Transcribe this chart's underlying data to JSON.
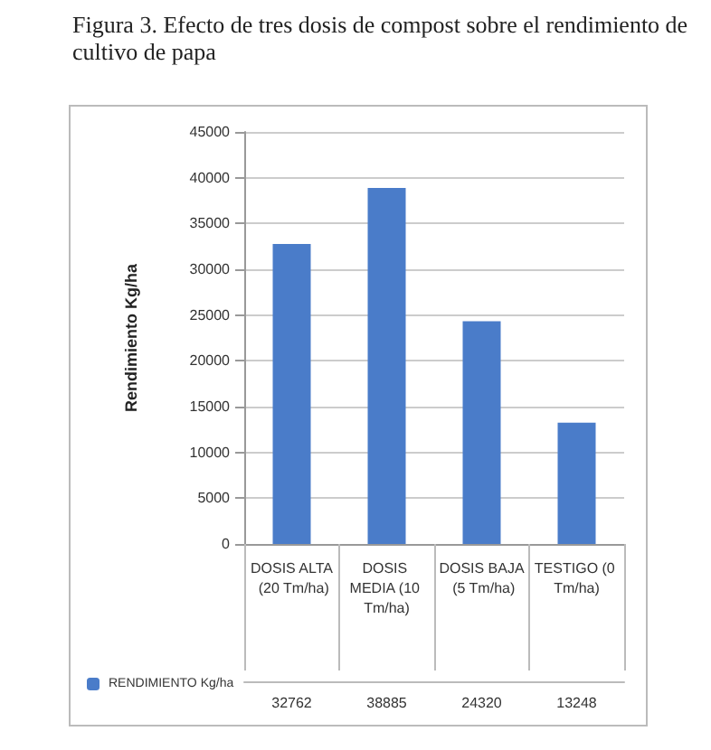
{
  "chart_data": {
    "type": "bar",
    "title": "Figura 3. Efecto de tres dosis de compost sobre el rendimiento de cultivo de papa",
    "ylabel": "Rendimiento Kg/ha",
    "categories": [
      "DOSIS ALTA (20 Tm/ha)",
      "DOSIS MEDIA (10 Tm/ha)",
      "DOSIS BAJA (5 Tm/ha)",
      "TESTIGO (0 Tm/ha)"
    ],
    "series": [
      {
        "name": "RENDIMIENTO Kg/ha",
        "color": "#4a7cc9",
        "values": [
          32762,
          38885,
          24320,
          13248
        ]
      }
    ],
    "ylim": [
      0,
      45000
    ],
    "yticks": [
      0,
      5000,
      10000,
      15000,
      20000,
      25000,
      30000,
      35000,
      40000,
      45000
    ],
    "grid": "y",
    "legend": "bottom left",
    "data_labels": true
  }
}
